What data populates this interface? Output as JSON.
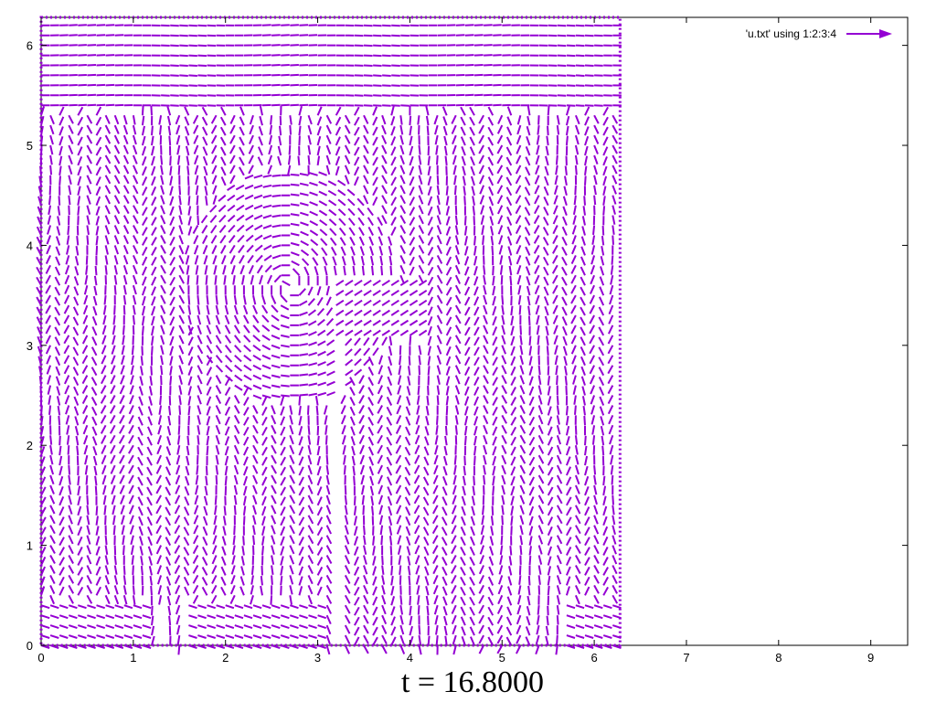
{
  "chart_data": {
    "type": "vector-field",
    "caption": "t = 16.8000",
    "legend": {
      "label": "'u.txt' using 1:2:3:4",
      "position": "top-right"
    },
    "xlim": [
      0,
      9.4
    ],
    "ylim": [
      0,
      6.28
    ],
    "x_ticks": [
      "0",
      "1",
      "2",
      "3",
      "4",
      "5",
      "6",
      "7",
      "8",
      "9"
    ],
    "y_ticks": [
      "0",
      "1",
      "2",
      "3",
      "4",
      "5",
      "6"
    ],
    "field_extent": {
      "x": [
        0,
        6.28
      ],
      "y": [
        0,
        6.28
      ]
    },
    "grid_spacing": 0.1,
    "grid": false,
    "colors": {
      "vectors": "#9400d3",
      "axis": "#000000"
    }
  }
}
